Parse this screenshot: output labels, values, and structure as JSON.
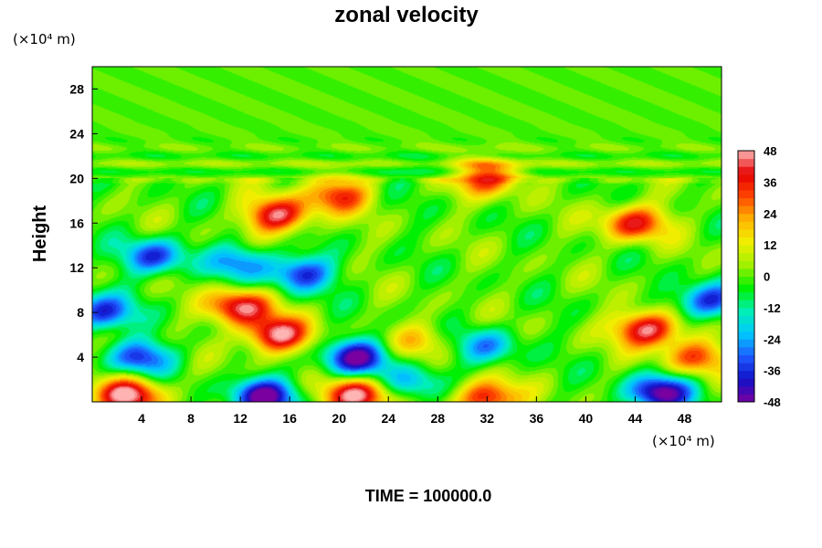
{
  "chart_data": {
    "type": "heatmap",
    "title": "zonal velocity",
    "xlabel": "",
    "ylabel": "Height",
    "x_unit": "(×10⁴ m)",
    "y_unit": "(×10⁴ m)",
    "xlim": [
      0,
      51
    ],
    "ylim": [
      0,
      30
    ],
    "x_ticks": [
      4,
      8,
      12,
      16,
      20,
      24,
      28,
      32,
      36,
      40,
      44,
      48
    ],
    "y_ticks": [
      4,
      8,
      12,
      16,
      20,
      24,
      28
    ],
    "x_tick_labels": [
      "4",
      "8",
      "12",
      "16",
      "20",
      "24",
      "28",
      "32",
      "36",
      "40",
      "44",
      "48"
    ],
    "y_tick_labels": [
      "4",
      "8",
      "12",
      "16",
      "20",
      "24",
      "28"
    ],
    "colorbar": {
      "min": -48,
      "max": 48,
      "ticks": [
        48,
        36,
        24,
        12,
        0,
        -12,
        -24,
        -36,
        -48
      ],
      "tick_labels": [
        "48",
        "36",
        "24",
        "12",
        "0",
        "-12",
        "-24",
        "-36",
        "-48"
      ],
      "colormap": [
        "#7a00a0",
        "#1010c8",
        "#1e5aff",
        "#00c8ff",
        "#00f0b4",
        "#00f000",
        "#a0f000",
        "#f0f000",
        "#ffb400",
        "#ff4600",
        "#e60000",
        "#ffb4b4"
      ]
    },
    "features": [
      {
        "kind": "positive",
        "x": 15,
        "y": 6,
        "value": 48
      },
      {
        "kind": "positive",
        "x": 12,
        "y": 8.5,
        "value": 44
      },
      {
        "kind": "positive",
        "x": 45,
        "y": 6.5,
        "value": 48
      },
      {
        "kind": "positive",
        "x": 3,
        "y": 0.6,
        "value": 48
      },
      {
        "kind": "positive",
        "x": 21.5,
        "y": 0.6,
        "value": 48
      },
      {
        "kind": "positive",
        "x": 32,
        "y": 0.3,
        "value": 40
      },
      {
        "kind": "positive",
        "x": 15,
        "y": 16.7,
        "value": 44
      },
      {
        "kind": "positive",
        "x": 20,
        "y": 18.5,
        "value": 34
      },
      {
        "kind": "positive",
        "x": 44,
        "y": 16,
        "value": 38
      },
      {
        "kind": "positive",
        "x": 32,
        "y": 20.1,
        "value": 36
      },
      {
        "kind": "positive",
        "x": 26.5,
        "y": 5.5,
        "value": 18
      },
      {
        "kind": "positive",
        "x": 49,
        "y": 4,
        "value": 30
      },
      {
        "kind": "negative",
        "x": 21.5,
        "y": 4,
        "value": -46
      },
      {
        "kind": "negative",
        "x": 4,
        "y": 4,
        "value": -34
      },
      {
        "kind": "negative",
        "x": 0.8,
        "y": 8,
        "value": -36
      },
      {
        "kind": "negative",
        "x": 5,
        "y": 13,
        "value": -34
      },
      {
        "kind": "negative",
        "x": 17,
        "y": 11.5,
        "value": -36
      },
      {
        "kind": "negative",
        "x": 12,
        "y": 12.5,
        "value": -26
      },
      {
        "kind": "negative",
        "x": 14,
        "y": 0.5,
        "value": -48
      },
      {
        "kind": "negative",
        "x": 46,
        "y": 0.8,
        "value": -48
      },
      {
        "kind": "negative",
        "x": 32,
        "y": 5,
        "value": -24
      },
      {
        "kind": "negative",
        "x": 50,
        "y": 9,
        "value": -38
      },
      {
        "kind": "negative",
        "x": 26,
        "y": 1.8,
        "value": -22
      },
      {
        "kind": "positive",
        "x": 26,
        "y": 21.5,
        "value": 8
      },
      {
        "kind": "negative",
        "x": 26,
        "y": 21.1,
        "value": -12
      }
    ]
  },
  "footer": {
    "time_label": "TIME = 100000.0"
  }
}
